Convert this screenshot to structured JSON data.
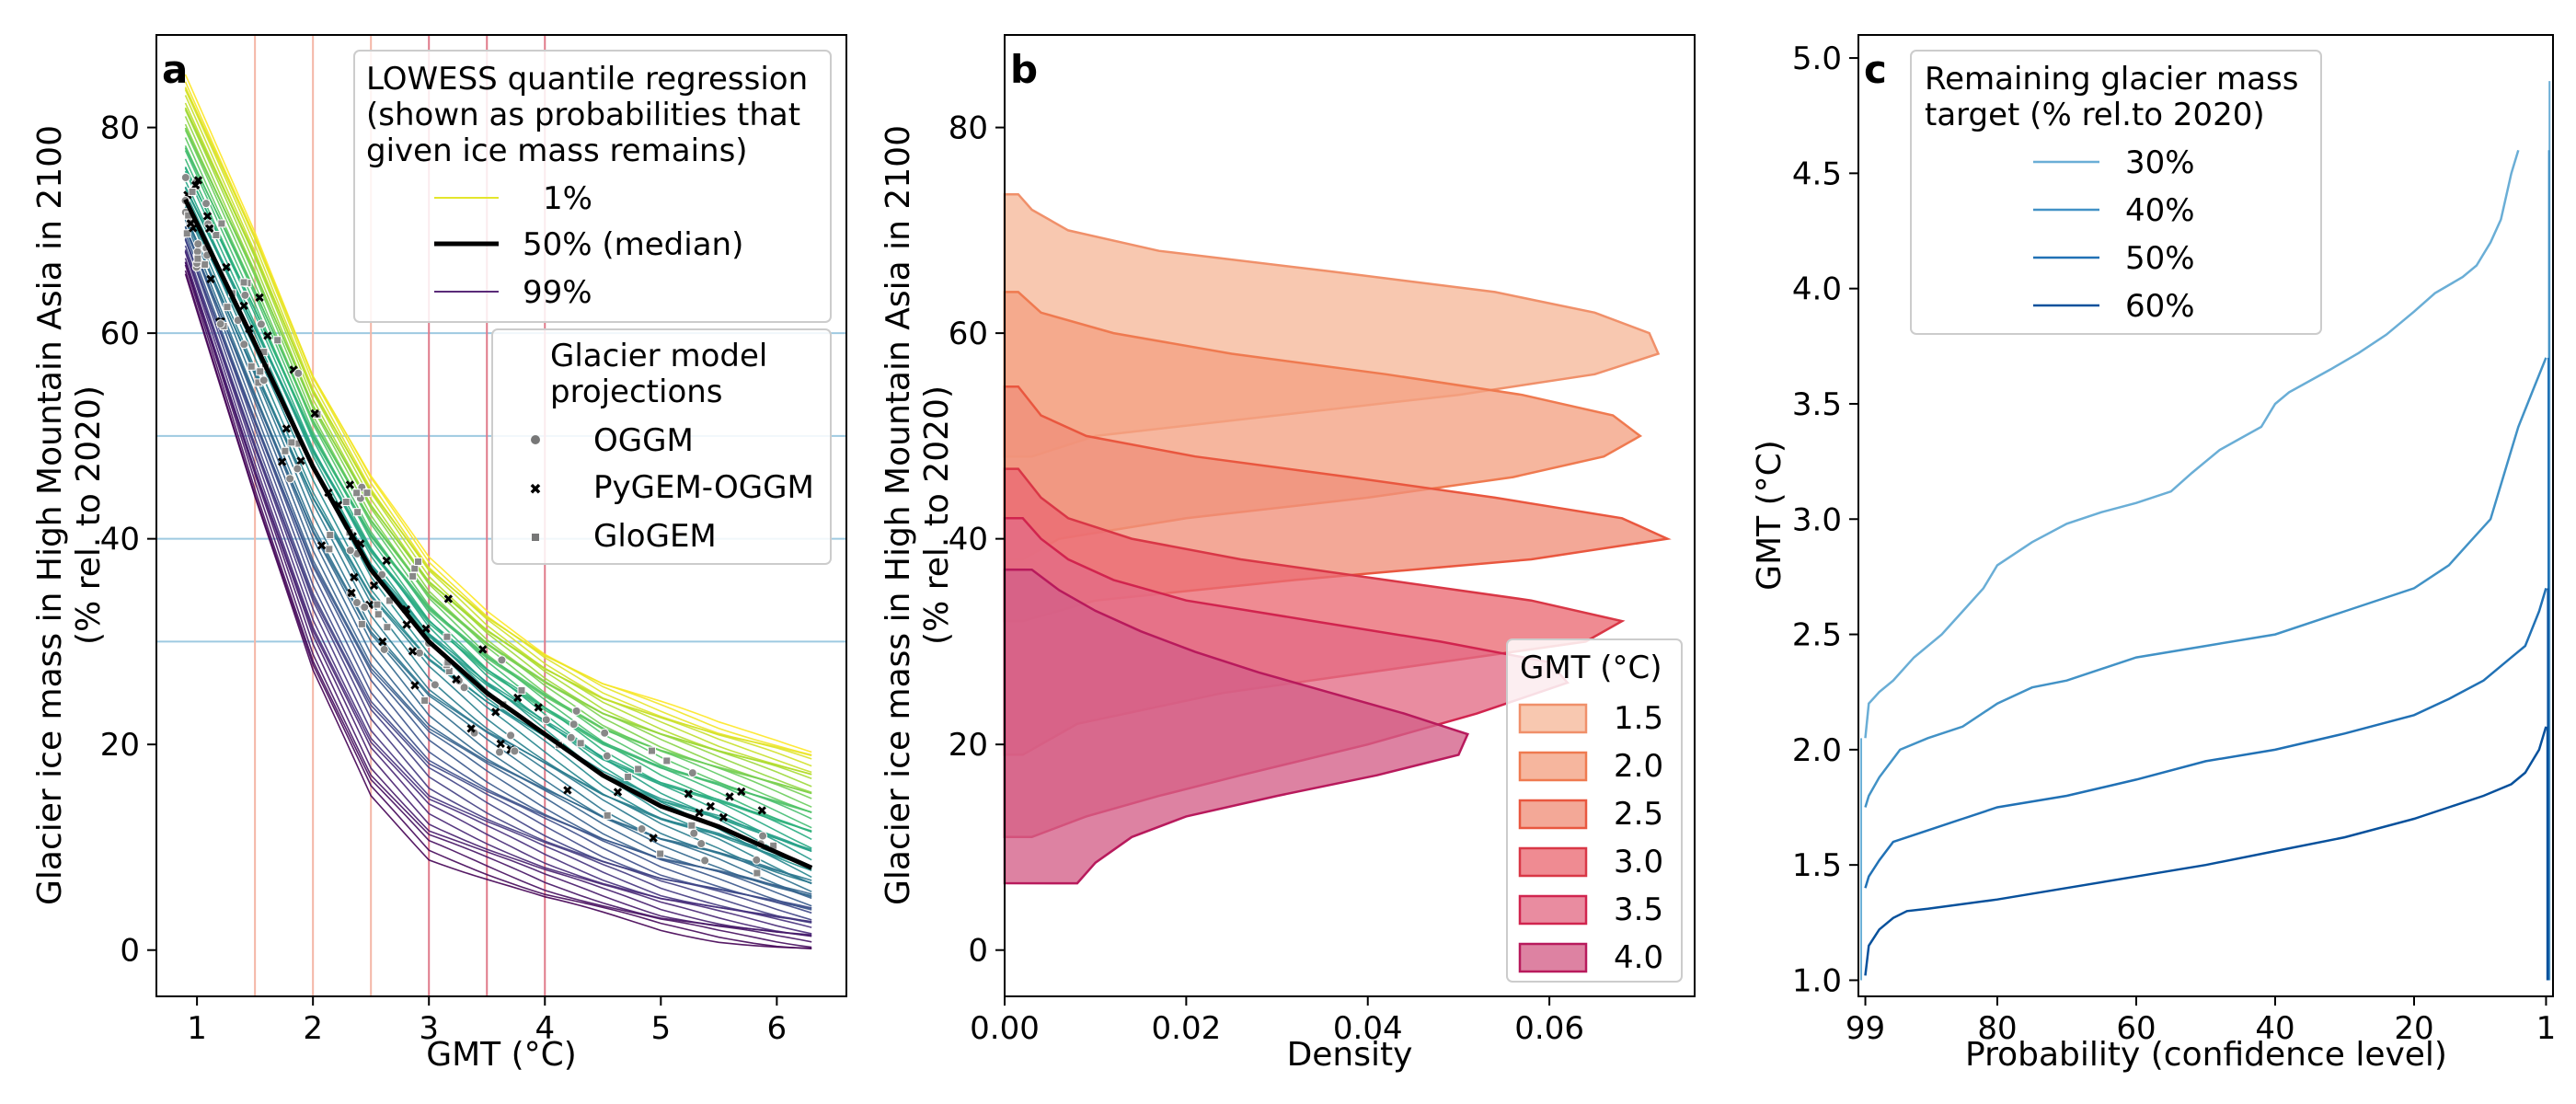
{
  "chart_data": [
    {
      "panel": "a",
      "type": "line",
      "xlabel": "GMT (°C)",
      "ylabel": "Glacier ice mass in High Mountain Asia in 2100",
      "ylabel2": "(% rel. to 2020)",
      "xlim": [
        0.65,
        6.6
      ],
      "ylim": [
        -4.5,
        89
      ],
      "xticks": [
        "1",
        "2",
        "3",
        "4",
        "5",
        "6"
      ],
      "yticks": [
        "0",
        "20",
        "40",
        "60",
        "80"
      ],
      "grid": false,
      "reference_hlines": [
        60,
        50,
        40,
        30
      ],
      "reference_vlines": [
        1.5,
        2.0,
        2.5,
        3.0,
        3.5,
        4.0
      ],
      "legend_quantile": {
        "title": [
          "LOWESS quantile regression",
          "(shown as probabilities that",
          "given ice mass remains)"
        ],
        "entries": [
          {
            "label": "1%",
            "color": "#e4e62c"
          },
          {
            "label": "50% (median)",
            "color": "#000000"
          },
          {
            "label": "99%",
            "color": "#5a2a78"
          }
        ]
      },
      "legend_models": {
        "title": [
          "Glacier model",
          "projections"
        ],
        "entries": [
          {
            "label": "OGGM",
            "marker": "circle"
          },
          {
            "label": "PyGEM-OGGM",
            "marker": "x"
          },
          {
            "label": "GloGEM",
            "marker": "square"
          }
        ]
      },
      "x": [
        0.9,
        1.5,
        2.0,
        2.5,
        3.0,
        3.5,
        4.0,
        4.5,
        5.0,
        5.5,
        6.0,
        6.3
      ],
      "median": [
        73,
        59,
        47,
        37,
        30,
        25,
        21,
        17,
        14,
        12,
        9.5,
        8
      ],
      "q1": [
        85,
        70,
        56,
        46,
        38,
        33,
        29,
        26,
        24,
        22,
        20.5,
        19.5
      ],
      "q99": [
        66,
        44,
        27,
        15,
        9,
        7,
        5,
        3.5,
        2,
        1,
        0.3,
        0
      ]
    },
    {
      "panel": "b",
      "type": "area",
      "xlabel": "Density",
      "ylabel": "Glacier ice mass in High Mountain Asia in 2100",
      "ylabel2": "(% rel. to 2020)",
      "xlim": [
        0,
        0.076
      ],
      "ylim": [
        -4.5,
        89
      ],
      "xticks": [
        "0.00",
        "0.02",
        "0.04",
        "0.06"
      ],
      "yticks": [
        "0",
        "20",
        "40",
        "60",
        "80"
      ],
      "legend": {
        "title": "GMT (°C)",
        "placement": "lower-right"
      },
      "series": [
        {
          "name": "1.5",
          "fill": "#f6b99a",
          "edge": "#f0906a",
          "y": [
            48,
            50,
            52,
            54,
            56,
            58,
            60,
            62,
            64,
            66,
            68,
            70,
            72,
            73.5
          ],
          "dens": [
            0.003,
            0.01,
            0.03,
            0.05,
            0.065,
            0.072,
            0.071,
            0.065,
            0.054,
            0.036,
            0.017,
            0.007,
            0.003,
            0.0015
          ]
        },
        {
          "name": "2.0",
          "fill": "#f3a283",
          "edge": "#ef7a50",
          "y": [
            38,
            40,
            42,
            44,
            46,
            48,
            50,
            52,
            54,
            56,
            58,
            60,
            62,
            64
          ],
          "dens": [
            0.002,
            0.006,
            0.02,
            0.04,
            0.056,
            0.066,
            0.07,
            0.067,
            0.057,
            0.042,
            0.025,
            0.012,
            0.004,
            0.0015
          ]
        },
        {
          "name": "2.5",
          "fill": "#f0907a",
          "edge": "#e9573f",
          "y": [
            32,
            34,
            36,
            38,
            40,
            42,
            44,
            46,
            48,
            50,
            52,
            54.8
          ],
          "dens": [
            0.002,
            0.01,
            0.032,
            0.058,
            0.073,
            0.068,
            0.054,
            0.038,
            0.021,
            0.009,
            0.004,
            0.0015
          ]
        },
        {
          "name": "3.0",
          "fill": "#ea6a73",
          "edge": "#d93746",
          "y": [
            19,
            22,
            25,
            28,
            30,
            32,
            34,
            36,
            38,
            40,
            42,
            44,
            46.8
          ],
          "dens": [
            0.002,
            0.008,
            0.024,
            0.048,
            0.064,
            0.068,
            0.058,
            0.042,
            0.026,
            0.014,
            0.007,
            0.004,
            0.0015
          ]
        },
        {
          "name": "3.5",
          "fill": "#e36b85",
          "edge": "#d1244e",
          "y": [
            11,
            13,
            15,
            17,
            20,
            23,
            26,
            28,
            30,
            32,
            34,
            36,
            38,
            40,
            42
          ],
          "dens": [
            0.003,
            0.009,
            0.017,
            0.026,
            0.04,
            0.052,
            0.062,
            0.06,
            0.048,
            0.034,
            0.02,
            0.012,
            0.007,
            0.004,
            0.002
          ]
        },
        {
          "name": "4.0",
          "fill": "#d35f88",
          "edge": "#b81a5c",
          "y": [
            6.5,
            8.5,
            11,
            13,
            15,
            17,
            19,
            21,
            23,
            25,
            27,
            29,
            31,
            33,
            35,
            37
          ],
          "dens": [
            0.008,
            0.01,
            0.014,
            0.02,
            0.03,
            0.041,
            0.05,
            0.051,
            0.044,
            0.036,
            0.028,
            0.021,
            0.015,
            0.01,
            0.006,
            0.003
          ]
        }
      ]
    },
    {
      "panel": "c",
      "type": "line",
      "xlabel": "Probability (confidence level)",
      "ylabel": "GMT (°C)",
      "xlim": [
        100,
        0
      ],
      "ylim": [
        0.93,
        5.1
      ],
      "xticks": [
        "99",
        "80",
        "60",
        "40",
        "20",
        "1"
      ],
      "xtick_values": [
        99,
        80,
        60,
        40,
        20,
        1
      ],
      "yticks": [
        "1.0",
        "1.5",
        "2.0",
        "2.5",
        "3.0",
        "3.5",
        "4.0",
        "4.5",
        "5.0"
      ],
      "legend": {
        "title": [
          "Remaining glacier mass",
          "target (% rel.to 2020)"
        ],
        "placement": "top-left"
      },
      "series": [
        {
          "name": "30%",
          "color": "#6aaed6",
          "p": [
            99,
            98.5,
            97,
            95,
            92,
            88,
            85,
            82,
            80,
            75,
            70,
            65,
            60,
            55,
            52,
            48,
            45,
            42,
            41,
            40,
            38,
            35,
            32,
            28,
            24,
            20,
            17,
            13,
            11,
            9,
            7.5,
            6,
            5
          ],
          "gmt": [
            2.05,
            2.2,
            2.25,
            2.3,
            2.4,
            2.5,
            2.6,
            2.7,
            2.8,
            2.9,
            2.98,
            3.03,
            3.07,
            3.12,
            3.2,
            3.3,
            3.35,
            3.4,
            3.45,
            3.5,
            3.55,
            3.6,
            3.65,
            3.72,
            3.8,
            3.9,
            3.98,
            4.05,
            4.1,
            4.2,
            4.3,
            4.5,
            4.6
          ]
        },
        {
          "name": "40%",
          "color": "#4292c6",
          "p": [
            99,
            98.5,
            97,
            94,
            90,
            85,
            80,
            75,
            70,
            60,
            50,
            40,
            30,
            20,
            15,
            12,
            9,
            7,
            5,
            3,
            1
          ],
          "gmt": [
            1.75,
            1.8,
            1.88,
            2.0,
            2.05,
            2.1,
            2.2,
            2.27,
            2.3,
            2.4,
            2.45,
            2.5,
            2.6,
            2.7,
            2.8,
            2.9,
            3.0,
            3.2,
            3.4,
            3.55,
            3.7
          ]
        },
        {
          "name": "50%",
          "color": "#2171b5",
          "p": [
            99,
            98.5,
            97,
            95,
            90,
            85,
            80,
            70,
            60,
            50,
            40,
            30,
            20,
            15,
            10,
            6,
            4,
            2,
            1
          ],
          "gmt": [
            1.4,
            1.45,
            1.52,
            1.6,
            1.65,
            1.7,
            1.75,
            1.8,
            1.87,
            1.95,
            2.0,
            2.07,
            2.15,
            2.22,
            2.3,
            2.4,
            2.45,
            2.6,
            2.7
          ]
        },
        {
          "name": "60%",
          "color": "#08519c",
          "p": [
            99,
            98.5,
            97,
            95,
            93,
            90,
            80,
            70,
            60,
            50,
            40,
            30,
            20,
            15,
            10,
            6,
            4,
            2,
            1
          ],
          "gmt": [
            1.02,
            1.15,
            1.22,
            1.27,
            1.3,
            1.31,
            1.35,
            1.4,
            1.45,
            1.5,
            1.56,
            1.62,
            1.7,
            1.75,
            1.8,
            1.85,
            1.9,
            2.0,
            2.1
          ]
        }
      ]
    }
  ],
  "colors": {
    "ref_hline": "#9ecae1",
    "ref_vline_light": "#f4b6a6",
    "ref_vline_dark": "#e07a8a",
    "scatter": "#888888"
  }
}
